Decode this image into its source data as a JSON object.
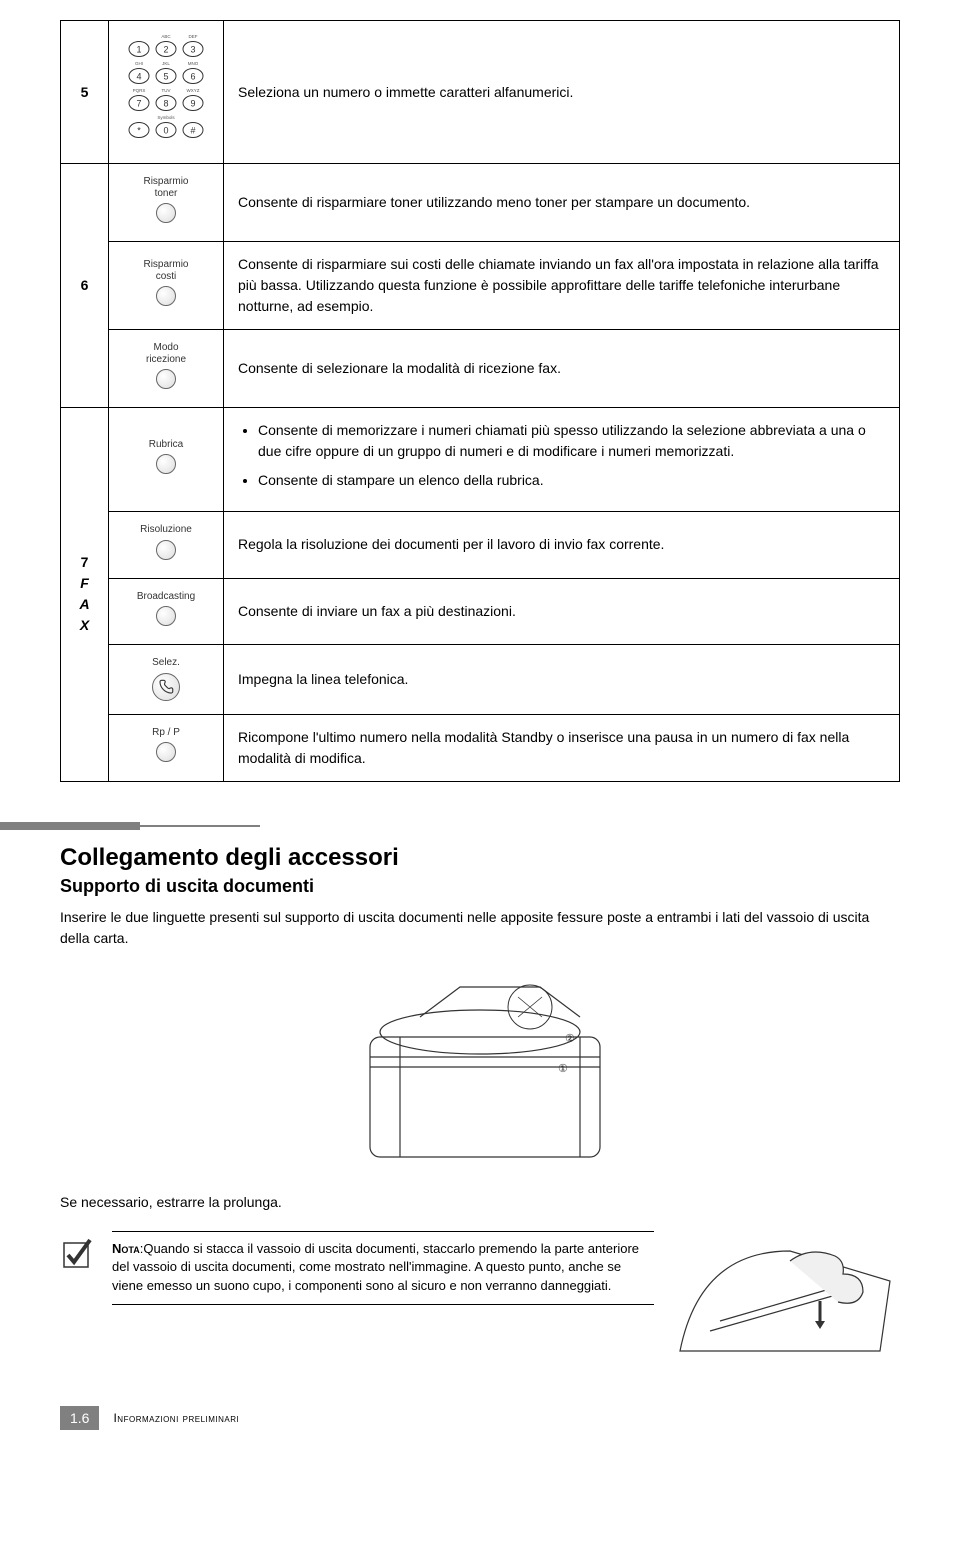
{
  "rows": {
    "r5": {
      "num": "5",
      "text": "Seleziona un numero o immette caratteri alfanumerici.",
      "keys": [
        {
          "d": "1",
          "s": ""
        },
        {
          "d": "2",
          "s": "ABC"
        },
        {
          "d": "3",
          "s": "DEF"
        },
        {
          "d": "4",
          "s": "GHI"
        },
        {
          "d": "5",
          "s": "JKL"
        },
        {
          "d": "6",
          "s": "MNO"
        },
        {
          "d": "7",
          "s": "PQRS"
        },
        {
          "d": "8",
          "s": "TUV"
        },
        {
          "d": "9",
          "s": "WXYZ"
        },
        {
          "d": "*",
          "s": ""
        },
        {
          "d": "0",
          "s": "Symbols"
        },
        {
          "d": "#",
          "s": ""
        }
      ]
    },
    "r6a": {
      "label": "Risparmio\ntoner",
      "text": "Consente di risparmiare toner utilizzando meno toner per stampare un documento."
    },
    "r6b": {
      "num": "6",
      "label": "Risparmio\ncosti",
      "text": "Consente di risparmiare sui costi delle chiamate inviando un fax all'ora impostata in relazione alla tariffa più bassa. Utilizzando questa funzione è possibile approfittare delle tariffe telefoniche interurbane notturne, ad esempio."
    },
    "r6c": {
      "label": "Modo\nricezione",
      "text": "Consente di selezionare la modalità di ricezione fax."
    },
    "r7a": {
      "label": "Rubrica",
      "bullet1": "Consente di memorizzare i numeri chiamati più spesso utilizzando la selezione abbreviata a una o due cifre oppure di un gruppo di numeri e di modificare i numeri memorizzati.",
      "bullet2": "Consente di stampare un elenco della rubrica."
    },
    "r7b": {
      "group": "7\nF\nA\nX",
      "label": "Risoluzione",
      "text": "Regola la risoluzione dei documenti per il lavoro di invio fax corrente."
    },
    "r7c": {
      "label": "Broadcasting",
      "text": "Consente di inviare un fax a più destinazioni."
    },
    "r7d": {
      "label": "Selez.",
      "text": "Impegna la linea telefonica."
    },
    "r7e": {
      "label": "Rp / P",
      "text": "Ricompone l'ultimo numero nella modalità Standby o inserisce una pausa in un numero di fax nella modalità di modifica."
    }
  },
  "section": {
    "title": "Collegamento degli accessori",
    "subtitle": "Supporto di uscita documenti",
    "body1": "Inserire le due linguette presenti sul supporto di uscita documenti nelle apposite fessure poste a entrambi i lati del vassoio di uscita della carta.",
    "body2": "Se necessario, estrarre la prolunga.",
    "note_label": "Nota",
    "note_text": ":Quando si stacca il vassoio di uscita documenti, staccarlo premendo la parte anteriore del vassoio di uscita documenti, come mostrato nell'immagine. A questo punto, anche se viene emesso un suono cupo, i componenti sono al sicuro e non verranno danneggiati."
  },
  "footer": {
    "page": "1.6",
    "chapter": "Informazioni preliminari"
  },
  "colors": {
    "divider": "#808080",
    "border": "#000000",
    "page_bg": "#ffffff"
  }
}
